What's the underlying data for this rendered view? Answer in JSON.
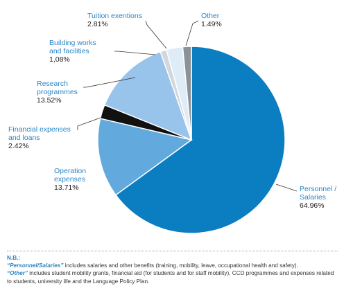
{
  "chart_data": {
    "type": "pie",
    "start": "top",
    "direction": "clockwise",
    "slices": [
      {
        "label": "Personnel / Salaries",
        "value": 64.96,
        "value_text": "64.96%",
        "color": "#0b7dc1"
      },
      {
        "label": "Operation expenses",
        "value": 13.71,
        "value_text": "13.71%",
        "color": "#62a9dd"
      },
      {
        "label": "Financial expenses and loans",
        "value": 2.42,
        "value_text": "2.42%",
        "color": "#111111"
      },
      {
        "label": "Research programmes",
        "value": 13.52,
        "value_text": "13.52%",
        "color": "#98c3ea"
      },
      {
        "label": "Building works and facilities",
        "value": 1.08,
        "value_text": "1,08%",
        "color": "#d2d7dc"
      },
      {
        "label": "Tuition exentions",
        "value": 2.81,
        "value_text": "2.81%",
        "color": "#deecf8"
      },
      {
        "label": "Other",
        "value": 1.49,
        "value_text": "1.49%",
        "color": "#8d9297"
      }
    ]
  },
  "notes": {
    "header": "N.B.:",
    "items": [
      {
        "term": "“Personnel/Salaries”",
        "text": " includes salaries and other benefits (training, mobility, leave, occupational health and safety)."
      },
      {
        "term": "“Other”",
        "text": " includes student mobility grants, financial aid (for students and for staff mobility), CCD programmes and expenses related to students, university life and the Language Policy Plan."
      }
    ]
  }
}
